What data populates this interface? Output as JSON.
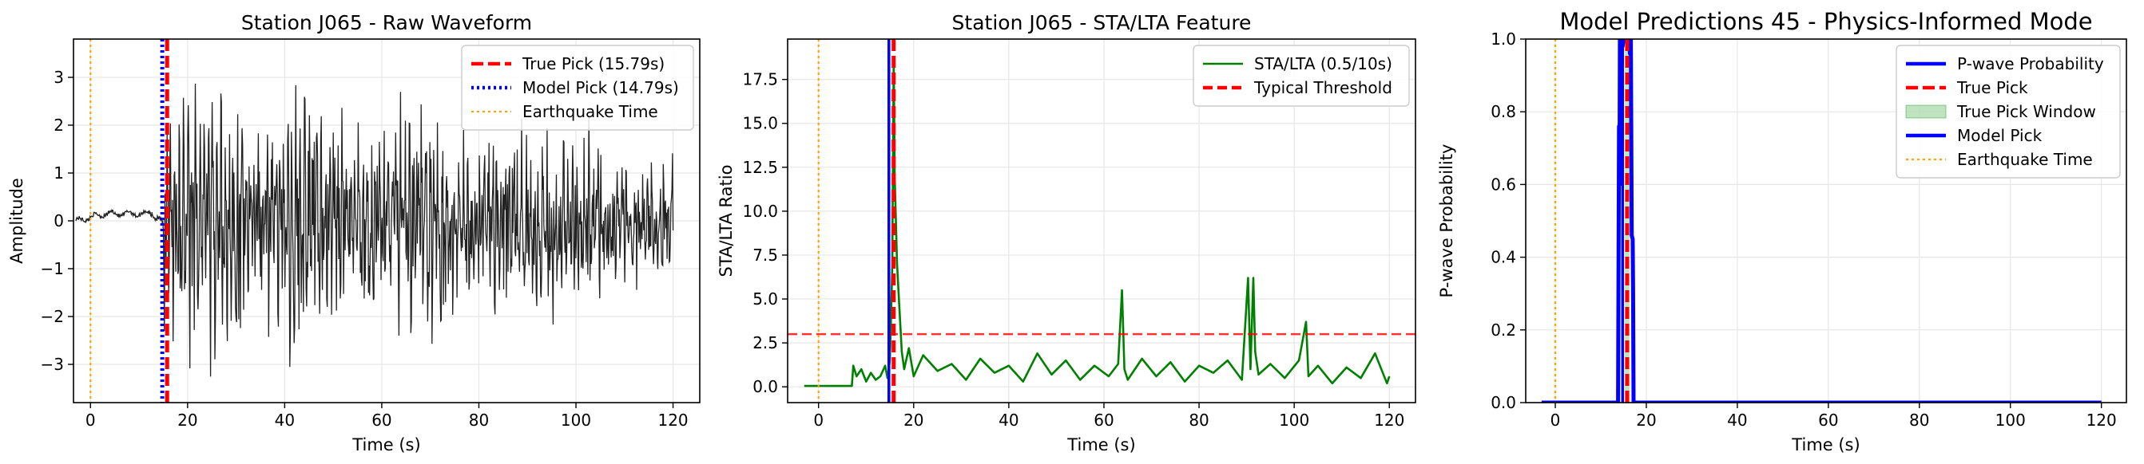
{
  "figure": {
    "panels": [
      {
        "title": "Station J065 - Raw Waveform",
        "xlabel": "Time (s)",
        "ylabel": "Amplitude",
        "xticks": [
          "0",
          "20",
          "40",
          "60",
          "80",
          "100",
          "120"
        ],
        "yticks": [
          "−3",
          "−2",
          "−1",
          "0",
          "1",
          "2",
          "3"
        ],
        "legend": [
          "True Pick (15.79s)",
          "Model Pick (14.79s)",
          "Earthquake Time"
        ]
      },
      {
        "title": "Station J065 - STA/LTA Feature",
        "xlabel": "Time (s)",
        "ylabel": "STA/LTA Ratio",
        "xticks": [
          "0",
          "20",
          "40",
          "60",
          "80",
          "100",
          "120"
        ],
        "yticks": [
          "0.0",
          "2.5",
          "5.0",
          "7.5",
          "10.0",
          "12.5",
          "15.0",
          "17.5"
        ],
        "legend": [
          "STA/LTA (0.5/10s)",
          "Typical Threshold"
        ]
      },
      {
        "title": "Model Predictions 45 - Physics-Informed Mode",
        "xlabel": "Time (s)",
        "ylabel": "P-wave Probability",
        "xticks": [
          "0",
          "20",
          "40",
          "60",
          "80",
          "100",
          "120"
        ],
        "yticks": [
          "0.0",
          "0.2",
          "0.4",
          "0.6",
          "0.8",
          "1.0"
        ],
        "legend": [
          "P-wave Probability",
          "True Pick",
          "True Pick Window",
          "Model Pick",
          "Earthquake Time"
        ]
      }
    ]
  },
  "chart_data": [
    {
      "type": "line",
      "title": "Station J065 - Raw Waveform",
      "xlabel": "Time (s)",
      "ylabel": "Amplitude",
      "xlim": [
        -3.5,
        125.5
      ],
      "ylim": [
        -3.8,
        3.8
      ],
      "grid": true,
      "legend_position": "top-right",
      "series": [
        {
          "name": "True Pick (15.79s)",
          "kind": "vline",
          "x": 15.79,
          "color": "#ff0000",
          "style": "dashed"
        },
        {
          "name": "Model Pick (14.79s)",
          "kind": "vline",
          "x": 14.79,
          "color": "#0000ff",
          "style": "dotted"
        },
        {
          "name": "Earthquake Time",
          "kind": "vline",
          "x": 0,
          "color": "#ffa500",
          "style": "dotted"
        },
        {
          "kind": "waveform",
          "color": "#222222",
          "x_start": -3,
          "x_end": 120,
          "pre_event_level": 0.15,
          "onset": 15,
          "peak_amplitude": 3.5,
          "end_value": -0.2
        }
      ]
    },
    {
      "type": "line",
      "title": "Station J065 - STA/LTA Feature",
      "xlabel": "Time (s)",
      "ylabel": "STA/LTA Ratio",
      "xlim": [
        -6.5,
        125.5
      ],
      "ylim": [
        -0.9,
        19.8
      ],
      "grid": true,
      "legend_position": "top-right",
      "series": [
        {
          "name": "STA/LTA (0.5/10s)",
          "kind": "line",
          "color": "#008000",
          "x": [
            -3,
            7,
            7.3,
            8,
            9,
            10,
            11,
            12,
            13,
            14,
            14.5,
            15,
            15.5,
            15.8,
            16,
            16.5,
            17,
            17.5,
            18,
            19,
            20,
            22,
            25,
            28,
            31,
            34,
            37,
            40,
            43,
            46,
            49,
            52,
            55,
            58,
            61,
            63,
            63.8,
            64.3,
            65,
            68,
            71,
            74,
            77,
            80,
            83,
            86,
            89,
            90.3,
            90.8,
            91.4,
            91.8,
            92.5,
            95,
            98,
            101,
            102.5,
            103,
            105,
            108,
            111,
            114,
            117,
            119.5,
            120
          ],
          "y": [
            0.05,
            0.05,
            1.2,
            0.6,
            1.0,
            0.3,
            0.8,
            0.4,
            0.6,
            1.2,
            0.5,
            1.5,
            6.8,
            18.8,
            12.0,
            7.0,
            4.5,
            2.0,
            1.0,
            2.2,
            0.6,
            1.8,
            0.9,
            1.3,
            0.4,
            1.6,
            0.8,
            1.2,
            0.3,
            1.9,
            0.7,
            1.5,
            0.4,
            1.2,
            0.6,
            1.3,
            5.5,
            1.0,
            0.4,
            1.6,
            0.6,
            1.4,
            0.3,
            1.2,
            0.8,
            1.5,
            0.4,
            6.2,
            1.0,
            6.2,
            2.0,
            0.7,
            1.3,
            0.5,
            1.5,
            3.7,
            0.6,
            1.2,
            0.2,
            1.1,
            0.5,
            1.9,
            0.2,
            0.6
          ]
        },
        {
          "name": "Typical Threshold",
          "kind": "hline",
          "y": 3.0,
          "color": "#ff0000",
          "style": "dashed"
        },
        {
          "kind": "vline",
          "x": 0,
          "color": "#ffa500",
          "style": "dotted"
        },
        {
          "kind": "vline",
          "x": 14.79,
          "color": "#0000ff",
          "style": "solid"
        },
        {
          "kind": "vline",
          "x": 15.79,
          "color": "#ff0000",
          "style": "dashed"
        }
      ]
    },
    {
      "type": "line",
      "title": "Model Predictions 45 - Physics-Informed Mode",
      "xlabel": "Time (s)",
      "ylabel": "P-wave Probability",
      "xlim": [
        -6.5,
        125.5
      ],
      "ylim": [
        0.0,
        1.0
      ],
      "grid": true,
      "legend_position": "top-right",
      "series": [
        {
          "name": "P-wave Probability",
          "kind": "line",
          "color": "#0000ff",
          "x": [
            -3,
            13.8,
            14.0,
            14.1,
            14.2,
            14.4,
            14.6,
            14.8,
            15.0,
            15.2,
            16.2,
            16.4,
            16.6,
            16.8,
            17.0,
            17.1,
            17.2,
            17.4,
            120
          ],
          "y": [
            0.0,
            0.0,
            0.76,
            0.6,
            1.0,
            0.88,
            1.0,
            0.98,
            1.0,
            1.0,
            1.0,
            0.96,
            1.0,
            0.46,
            0.45,
            0.31,
            0.0,
            0.0,
            0.0
          ]
        },
        {
          "name": "True Pick",
          "kind": "vline",
          "x": 15.79,
          "color": "#ff0000",
          "style": "dashed"
        },
        {
          "name": "True Pick Window",
          "kind": "span",
          "x": [
            15.29,
            16.29
          ],
          "color": "#2ca02c"
        },
        {
          "name": "Model Pick",
          "kind": "vline",
          "x": 14.79,
          "color": "#0000ff",
          "style": "solid"
        },
        {
          "name": "Earthquake Time",
          "kind": "vline",
          "x": 0,
          "color": "#ffa500",
          "style": "dotted"
        }
      ]
    }
  ]
}
